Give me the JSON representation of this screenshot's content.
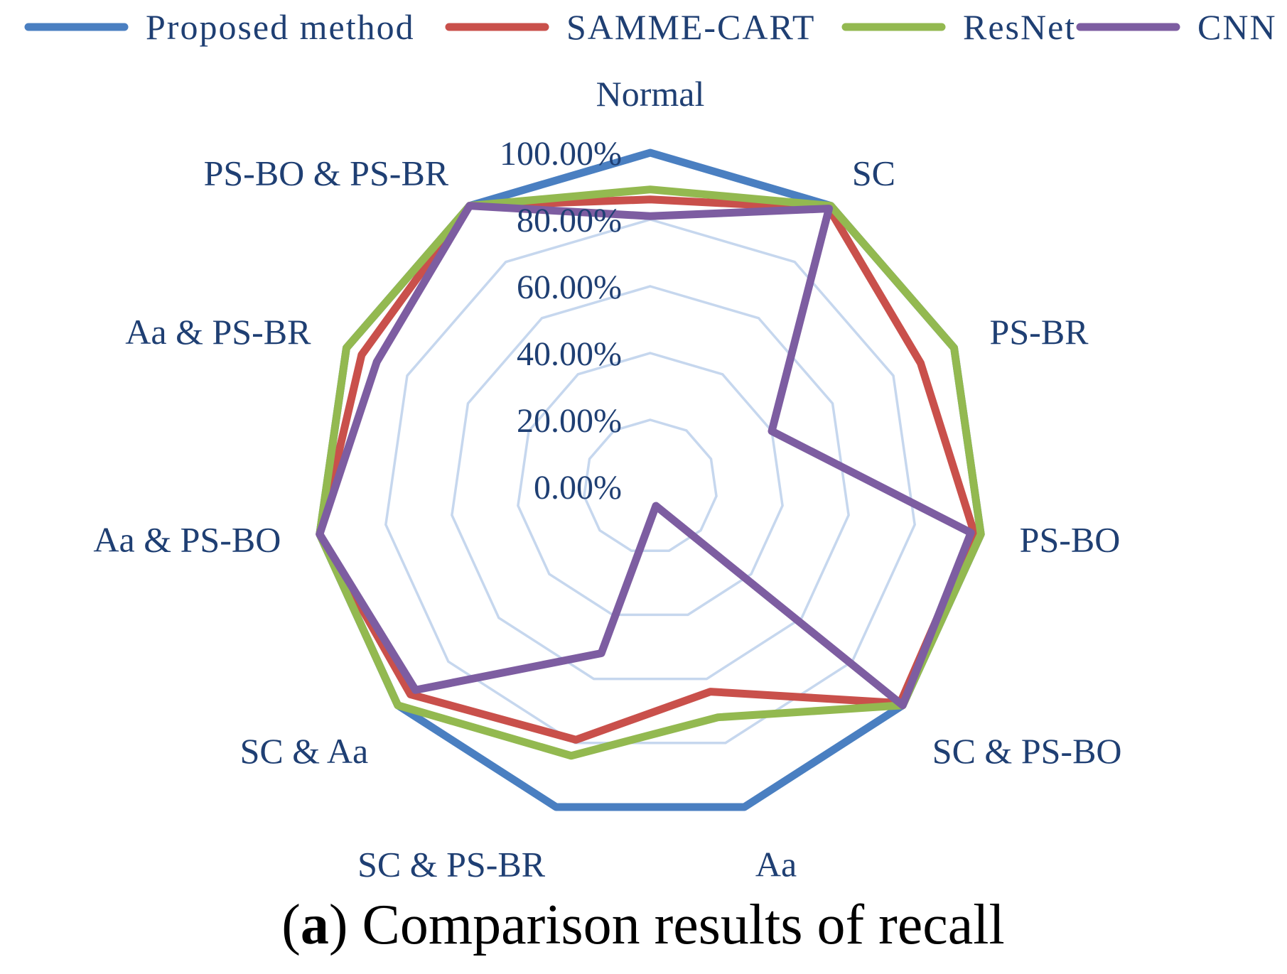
{
  "chart_data": {
    "type": "radar",
    "title": "",
    "categories": [
      "Normal",
      "SC",
      "PS-BR",
      "PS-BO",
      "SC & PS-BO",
      "Aa",
      "SC & PS-BR",
      "SC & Aa",
      "Aa & PS-BO",
      "Aa & PS-BR",
      "PS-BO & PS-BR"
    ],
    "rlim": [
      0,
      100
    ],
    "tick_values": [
      0,
      20,
      40,
      60,
      80,
      100
    ],
    "tick_labels": [
      "0.00%",
      "20.00%",
      "40.00%",
      "60.00%",
      "80.00%",
      "100.00%"
    ],
    "grid": true,
    "legend_position": "top",
    "series": [
      {
        "name": "Proposed method",
        "color": "#4a7fc1",
        "values": [
          100,
          100,
          100,
          100,
          100,
          100,
          100,
          100,
          100,
          100,
          100
        ]
      },
      {
        "name": "SAMME-CART",
        "color": "#c9504b",
        "values": [
          86,
          99,
          89,
          98,
          99,
          64,
          79,
          95,
          100,
          95,
          100
        ]
      },
      {
        "name": "ResNet",
        "color": "#93b950",
        "values": [
          89,
          100,
          100,
          100,
          100,
          72,
          84,
          100,
          100,
          100,
          100
        ]
      },
      {
        "name": "CNN",
        "color": "#7d5da1",
        "values": [
          81,
          99,
          40,
          97,
          100,
          6,
          52,
          93,
          100,
          90,
          100
        ]
      }
    ]
  },
  "caption": {
    "bold": "a",
    "text": " Comparison results of recall",
    "open": "(",
    "close": ")"
  }
}
